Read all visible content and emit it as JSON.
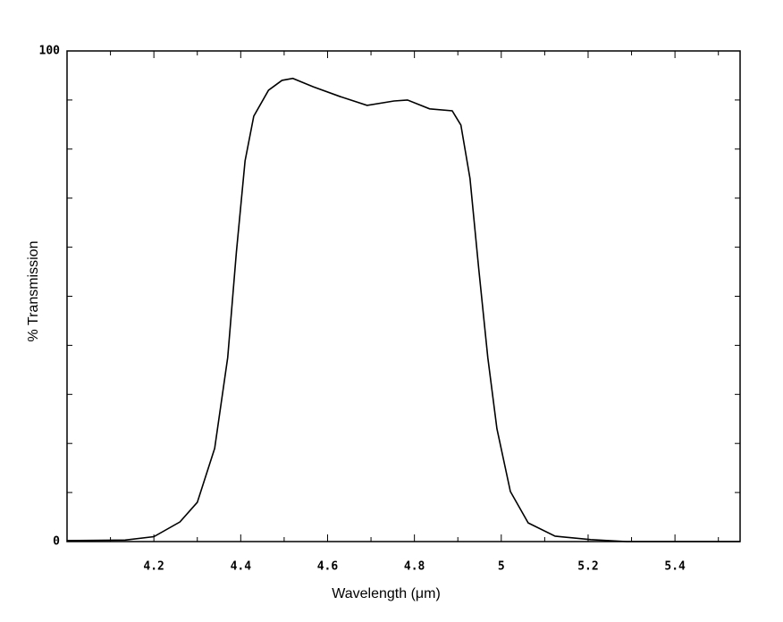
{
  "chart_data": {
    "type": "line",
    "xlabel": "Wavelength (μm)",
    "ylabel": "% Transmission",
    "xlim": [
      4.0,
      5.55
    ],
    "ylim": [
      0,
      100
    ],
    "xticks": [
      4.2,
      4.4,
      4.6,
      4.8,
      5,
      5.2,
      5.4
    ],
    "x_minor_ticks": [
      4.1,
      4.3,
      4.5,
      4.7,
      4.9,
      5.1,
      5.3,
      5.5
    ],
    "yticks": [
      0,
      100
    ],
    "y_minor_ticks": [
      10,
      20,
      30,
      40,
      50,
      60,
      70,
      80,
      90
    ],
    "grid": false,
    "series": [
      {
        "color": "#000000",
        "x": [
          4.0,
          4.134,
          4.2,
          4.26,
          4.3,
          4.34,
          4.37,
          4.39,
          4.41,
          4.43,
          4.464,
          4.495,
          4.52,
          4.567,
          4.629,
          4.691,
          4.753,
          4.784,
          4.835,
          4.887,
          4.907,
          4.928,
          4.948,
          4.969,
          4.99,
          5.021,
          5.062,
          5.124,
          5.206,
          5.289,
          5.55
        ],
        "values": [
          0.2,
          0.3,
          1,
          4,
          8,
          19,
          37.5,
          59,
          77.6,
          86.7,
          92,
          94,
          94.4,
          92.7,
          90.7,
          88.9,
          89.8,
          90,
          88.2,
          87.8,
          84.9,
          74,
          55.7,
          37.5,
          23,
          10.2,
          3.8,
          1.1,
          0.4,
          0,
          0
        ]
      }
    ]
  }
}
